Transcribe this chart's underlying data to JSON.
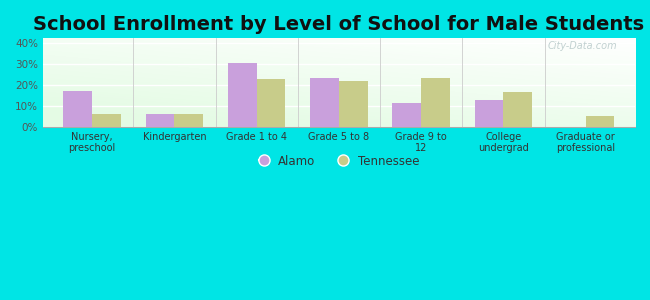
{
  "title": "School Enrollment by Level of School for Male Students",
  "categories": [
    "Nursery,\npreschool",
    "Kindergarten",
    "Grade 1 to 4",
    "Grade 5 to 8",
    "Grade 9 to\n12",
    "College\nundergrad",
    "Graduate or\nprofessional"
  ],
  "alamo": [
    17,
    6,
    30.5,
    23,
    11.5,
    13,
    0
  ],
  "tennessee": [
    6,
    6,
    22.5,
    22,
    23,
    16.5,
    5
  ],
  "alamo_color": "#c9a0dc",
  "tennessee_color": "#c8cc8a",
  "bar_width": 0.35,
  "ylim": [
    0,
    42
  ],
  "yticks": [
    0,
    10,
    20,
    30,
    40
  ],
  "ytick_labels": [
    "0%",
    "10%",
    "20%",
    "30%",
    "40%"
  ],
  "background_color": "#00e5e5",
  "title_fontsize": 14,
  "watermark": "City-Data.com",
  "legend_labels": [
    "Alamo",
    "Tennessee"
  ],
  "tick_color": "#777777",
  "grid_color": "#dddddd"
}
